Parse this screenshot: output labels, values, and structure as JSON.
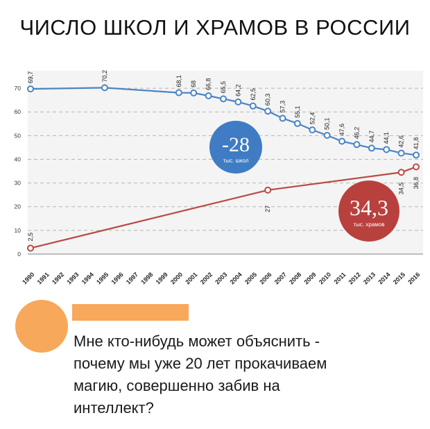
{
  "title": "ЧИСЛО ШКОЛ И ХРАМОВ В РОССИИ",
  "colors": {
    "schools_line": "#4a84c4",
    "temples_line": "#b94a45",
    "schools_badge": "#3f7cc4",
    "temples_badge": "#b8413e",
    "grid": "#b5b5b5",
    "avatar": "#f7a85a",
    "namebar": "#f7a85a"
  },
  "chart_data": {
    "type": "line",
    "title": "ЧИСЛО ШКОЛ И ХРАМОВ В РОССИИ",
    "xlabel": "",
    "ylabel": "",
    "ylim": [
      0,
      75
    ],
    "yticks": [
      "0",
      "10",
      "20",
      "30",
      "40",
      "50",
      "60",
      "70"
    ],
    "xticks": [
      "1990",
      "1991",
      "1992",
      "1993",
      "1994",
      "1995",
      "1996",
      "1997",
      "1998",
      "1999",
      "2000",
      "2001",
      "2002",
      "2003",
      "2004",
      "2005",
      "2006",
      "2007",
      "2008",
      "2009",
      "2010",
      "2011",
      "2012",
      "2013",
      "2014",
      "2015",
      "2016"
    ],
    "grid": true,
    "series": [
      {
        "key": "schools",
        "x": [
          1990,
          1995,
          2000,
          2001,
          2002,
          2003,
          2004,
          2005,
          2006,
          2007,
          2008,
          2009,
          2010,
          2011,
          2012,
          2013,
          2014,
          2015,
          2016
        ],
        "values": [
          69.7,
          70.2,
          68.1,
          68,
          66.8,
          65.5,
          64.2,
          62.5,
          60.3,
          57.3,
          55.1,
          52.4,
          50.1,
          47.6,
          46.2,
          44.7,
          44.1,
          42.6,
          41.8
        ],
        "labels": [
          "69,7",
          "70,2",
          "68,1",
          "68",
          "66,8",
          "65,5",
          "64,2",
          "62,5",
          "60,3",
          "57,3",
          "55,1",
          "52,4",
          "50,1",
          "47,6",
          "46,2",
          "44,7",
          "44,1",
          "42,6",
          "41,8"
        ]
      },
      {
        "key": "temples",
        "x": [
          1990,
          2006,
          2015,
          2016
        ],
        "values": [
          2.5,
          27,
          34.5,
          36.8
        ],
        "labels": [
          "2,5",
          "27",
          "34,5",
          "36,8"
        ]
      }
    ],
    "annotations": [
      {
        "key": "schools_delta",
        "value": "-28",
        "caption": "тыс. школ"
      },
      {
        "key": "temples_delta",
        "value": "34,3",
        "caption": "тыс. храмов"
      }
    ]
  },
  "comment": {
    "text": "Мне кто-нибудь может объяснить -\nпочему мы уже 20 лет прокачиваем\nмагию, совершенно забив на\nинтеллект?"
  }
}
